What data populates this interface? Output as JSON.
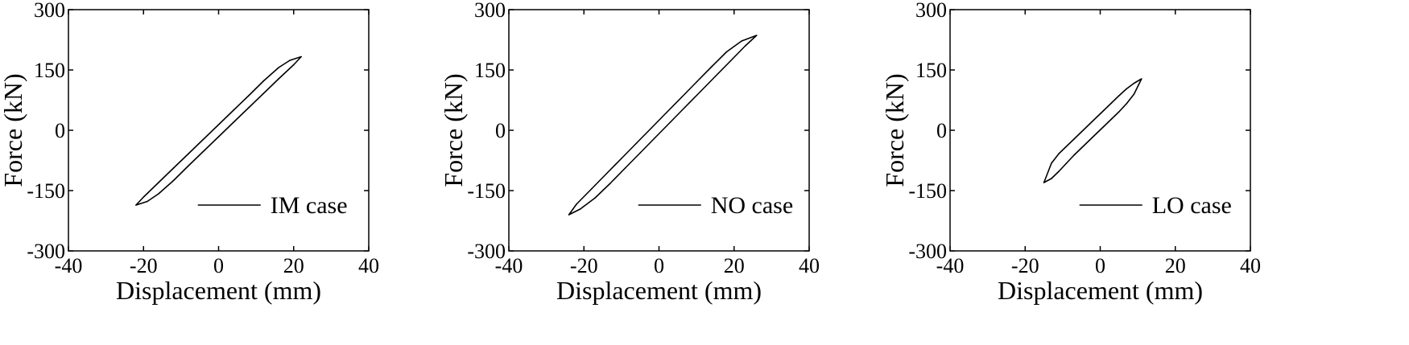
{
  "chart_data": [
    {
      "type": "line",
      "xlabel": "Displacement (mm)",
      "ylabel": "Force (kN)",
      "xlim": [
        -40,
        40
      ],
      "ylim": [
        -300,
        300
      ],
      "xticks": [
        -40,
        -20,
        0,
        20,
        40
      ],
      "yticks": [
        -300,
        -150,
        0,
        150,
        300
      ],
      "grid": false,
      "legend_position": "bottom-right",
      "series": [
        {
          "name": "IM case",
          "x": [
            22,
            19,
            16,
            12,
            8,
            4,
            0,
            -4,
            -8,
            -12,
            -16,
            -20,
            -22,
            -19,
            -16,
            -12,
            -8,
            -4,
            0,
            4,
            8,
            12,
            16,
            20,
            22
          ],
          "y": [
            183,
            174,
            156,
            123,
            86,
            50,
            14,
            -22,
            -58,
            -94,
            -130,
            -166,
            -186,
            -177,
            -158,
            -125,
            -88,
            -52,
            -16,
            20,
            56,
            92,
            128,
            163,
            183
          ]
        }
      ]
    },
    {
      "type": "line",
      "xlabel": "Displacement (mm)",
      "ylabel": "Force (kN)",
      "xlim": [
        -40,
        40
      ],
      "ylim": [
        -300,
        300
      ],
      "xticks": [
        -40,
        -20,
        0,
        20,
        40
      ],
      "yticks": [
        -300,
        -150,
        0,
        150,
        300
      ],
      "grid": false,
      "legend_position": "bottom-right",
      "series": [
        {
          "name": "NO case",
          "x": [
            26,
            22,
            18,
            14,
            10,
            6,
            2,
            -2,
            -6,
            -10,
            -14,
            -18,
            -22,
            -24,
            -21,
            -17,
            -13,
            -9,
            -5,
            -1,
            3,
            7,
            11,
            15,
            19,
            23,
            26
          ],
          "y": [
            236,
            222,
            195,
            158,
            120,
            82,
            44,
            6,
            -32,
            -70,
            -108,
            -146,
            -184,
            -210,
            -196,
            -168,
            -132,
            -94,
            -56,
            -18,
            20,
            58,
            96,
            134,
            172,
            210,
            236
          ]
        }
      ]
    },
    {
      "type": "line",
      "xlabel": "Displacement (mm)",
      "ylabel": "Force (kN)",
      "xlim": [
        -40,
        40
      ],
      "ylim": [
        -300,
        300
      ],
      "xticks": [
        -40,
        -20,
        0,
        20,
        40
      ],
      "yticks": [
        -300,
        -150,
        0,
        150,
        300
      ],
      "grid": false,
      "legend_position": "bottom-right",
      "series": [
        {
          "name": "LO case",
          "x": [
            11,
            9,
            7,
            5,
            3,
            1,
            -1,
            -3,
            -5,
            -7,
            -9,
            -11,
            -13,
            -15,
            -13,
            -11,
            -9,
            -7,
            -5,
            -3,
            -1,
            1,
            3,
            5,
            7,
            9,
            11
          ],
          "y": [
            128,
            117,
            103,
            86,
            68,
            50,
            32,
            14,
            -4,
            -22,
            -40,
            -58,
            -82,
            -130,
            -120,
            -102,
            -82,
            -62,
            -44,
            -26,
            -8,
            10,
            28,
            46,
            66,
            90,
            128
          ]
        }
      ]
    }
  ]
}
